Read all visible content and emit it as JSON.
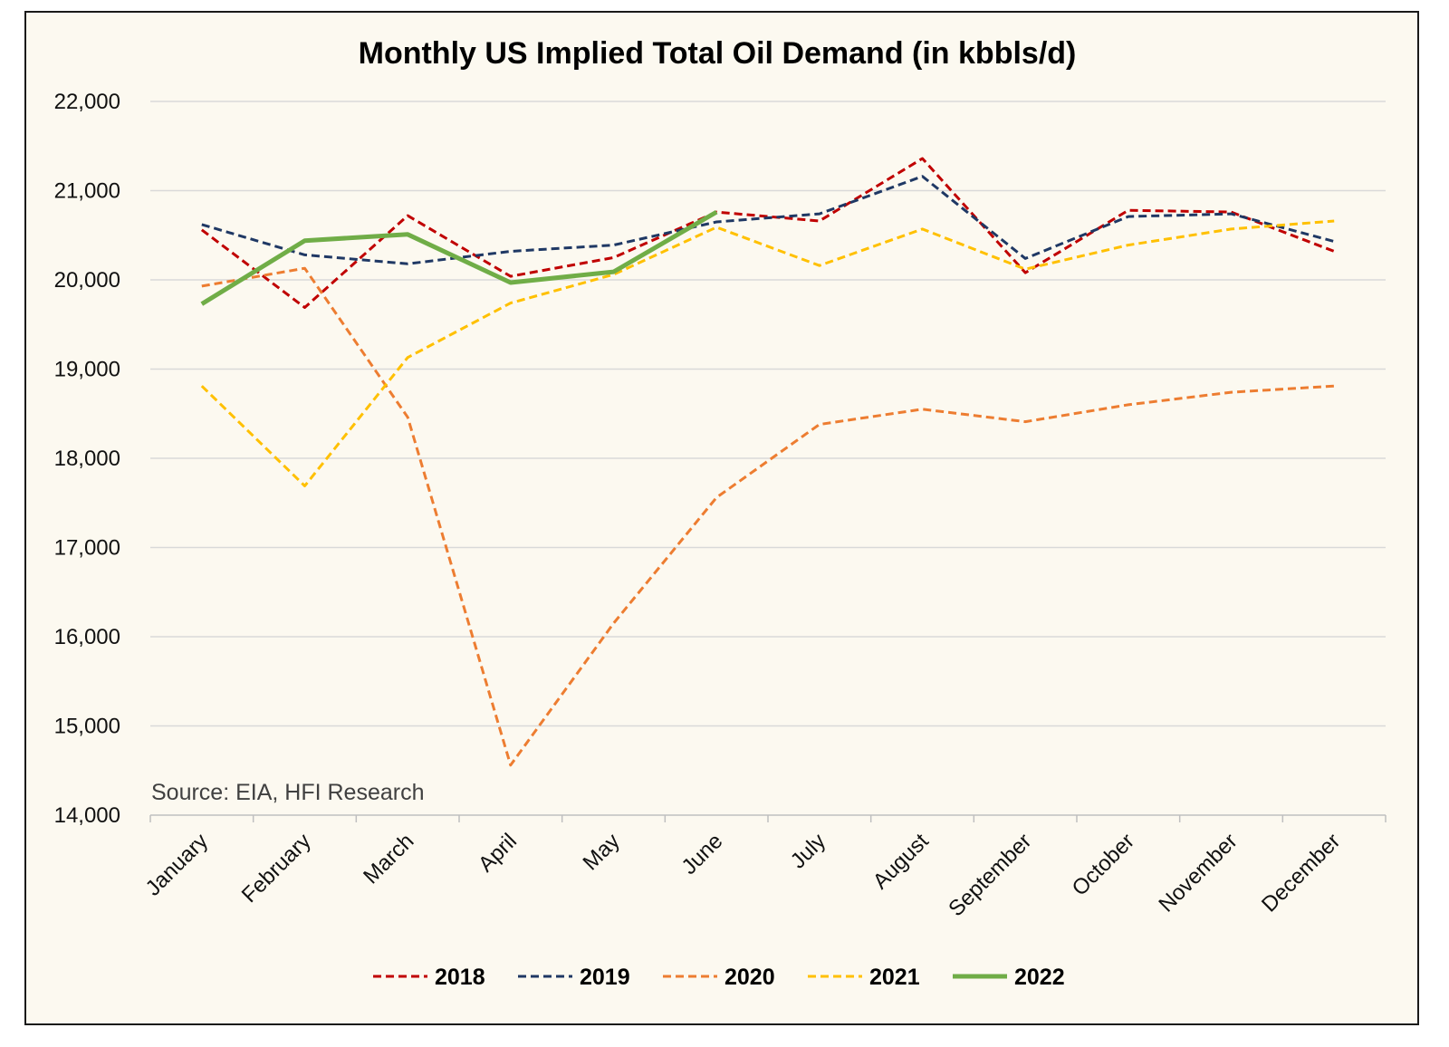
{
  "chart_data": {
    "type": "line",
    "title": "Monthly US Implied Total Oil Demand (in kbbls/d)",
    "annotation": "Source: EIA, HFI Research",
    "xlabel": "",
    "ylabel": "",
    "ylim": [
      14000,
      22000
    ],
    "yticks": [
      14000,
      15000,
      16000,
      17000,
      18000,
      19000,
      20000,
      21000,
      22000
    ],
    "ytick_labels": [
      "14,000",
      "15,000",
      "16,000",
      "17,000",
      "18,000",
      "19,000",
      "20,000",
      "21,000",
      "22,000"
    ],
    "grid": "horizontal",
    "legend_position": "bottom",
    "categories": [
      "January",
      "February",
      "March",
      "April",
      "May",
      "June",
      "July",
      "August",
      "September",
      "October",
      "November",
      "December"
    ],
    "series": [
      {
        "name": "2018",
        "color": "#c00000",
        "dash": "dashed",
        "values": [
          20560,
          19690,
          20720,
          20040,
          20250,
          20760,
          20660,
          21360,
          20080,
          20780,
          20760,
          20320
        ]
      },
      {
        "name": "2019",
        "color": "#1f3864",
        "dash": "dashed",
        "values": [
          20620,
          20280,
          20180,
          20320,
          20390,
          20650,
          20740,
          21160,
          20240,
          20710,
          20740,
          20430
        ]
      },
      {
        "name": "2020",
        "color": "#ed7d31",
        "dash": "dashed",
        "values": [
          19930,
          20130,
          18460,
          14560,
          16150,
          17560,
          18380,
          18550,
          18410,
          18600,
          18740,
          18810
        ]
      },
      {
        "name": "2021",
        "color": "#ffc000",
        "dash": "dashed",
        "values": [
          18810,
          17690,
          19130,
          19740,
          20060,
          20590,
          20160,
          20570,
          20120,
          20390,
          20570,
          20660
        ]
      },
      {
        "name": "2022",
        "color": "#70ad47",
        "dash": "solid",
        "values": [
          19730,
          20440,
          20510,
          19970,
          20090,
          20760,
          null,
          null,
          null,
          null,
          null,
          null
        ]
      }
    ]
  }
}
